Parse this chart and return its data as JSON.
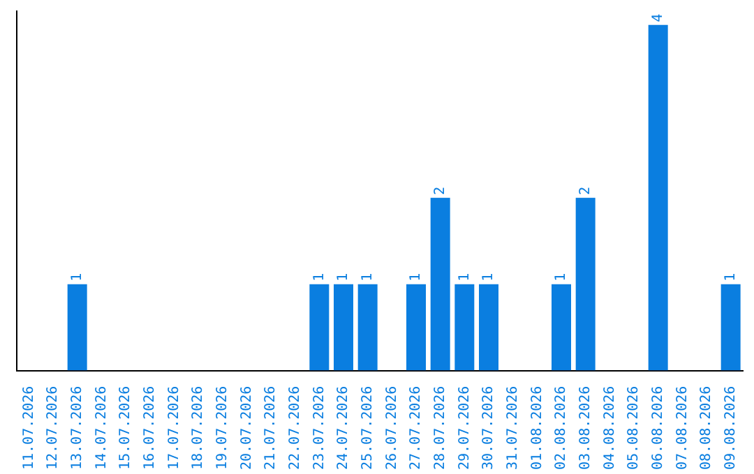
{
  "chart_data": {
    "type": "bar",
    "categories": [
      "11.07.2026",
      "12.07.2026",
      "13.07.2026",
      "14.07.2026",
      "15.07.2026",
      "16.07.2026",
      "17.07.2026",
      "18.07.2026",
      "19.07.2026",
      "20.07.2026",
      "21.07.2026",
      "22.07.2026",
      "23.07.2026",
      "24.07.2026",
      "25.07.2026",
      "26.07.2026",
      "27.07.2026",
      "28.07.2026",
      "29.07.2026",
      "30.07.2026",
      "31.07.2026",
      "01.08.2026",
      "02.08.2026",
      "03.08.2026",
      "04.08.2026",
      "05.08.2026",
      "06.08.2026",
      "07.08.2026",
      "08.08.2026",
      "09.08.2026"
    ],
    "values": [
      0,
      0,
      1,
      0,
      0,
      0,
      0,
      0,
      0,
      0,
      0,
      0,
      1,
      1,
      1,
      0,
      1,
      2,
      1,
      1,
      0,
      0,
      1,
      2,
      0,
      0,
      4,
      0,
      0,
      1
    ],
    "value_labels": [
      null,
      null,
      "1",
      null,
      null,
      null,
      null,
      null,
      null,
      null,
      null,
      null,
      "1",
      "1",
      "1",
      null,
      "1",
      "2",
      "1",
      "1",
      null,
      null,
      "1",
      "2",
      null,
      null,
      "4",
      null,
      null,
      "1"
    ],
    "color": "#0a7ee0",
    "tick_labels": "x",
    "grid": false,
    "legend": false
  }
}
